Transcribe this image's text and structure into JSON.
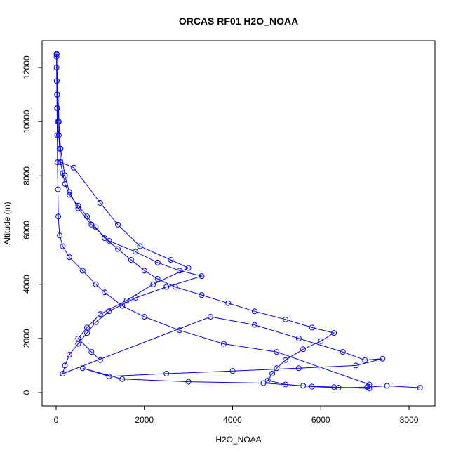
{
  "chart_data": {
    "type": "line",
    "markers": "circle",
    "title": "ORCAS RF01 H2O_NOAA",
    "x_label": "H2O_NOAA",
    "y_label": "Altitude (m)",
    "xlim": [
      -318,
      8588
    ],
    "ylim": [
      -492,
      12986
    ],
    "xticks": [
      0,
      2000,
      4000,
      6000,
      8000
    ],
    "yticks": [
      0,
      2000,
      4000,
      6000,
      8000,
      10000,
      12000
    ],
    "x": [
      8250,
      7500,
      7050,
      6400,
      5800,
      5200,
      4800,
      4900,
      5000,
      5200,
      5600,
      6000,
      6300,
      5800,
      5200,
      4500,
      3900,
      3300,
      2700,
      2300,
      2000,
      1700,
      1400,
      1100,
      900,
      700,
      500,
      300,
      200,
      150,
      100,
      80,
      60,
      40,
      30,
      20,
      15,
      10,
      10,
      12,
      15,
      30,
      60,
      100,
      200,
      300,
      500,
      800,
      1200,
      1800,
      2300,
      2800,
      3300,
      2500,
      1800,
      1200,
      900,
      700,
      500,
      300,
      200,
      150,
      3500,
      4500,
      5500,
      6500,
      7000,
      7400,
      6800,
      5500,
      4000,
      2500,
      1200,
      600,
      1500,
      3000,
      4700,
      5600,
      6300,
      7100,
      7100,
      5000,
      3800,
      2800,
      2000,
      1500,
      1100,
      900,
      600,
      300,
      150,
      80,
      50,
      40,
      30,
      25,
      20,
      15,
      10,
      100,
      400,
      1000,
      1400,
      1900,
      2600,
      3000,
      2200,
      1600,
      1000,
      700,
      500,
      800,
      1000
    ],
    "series": [
      {
        "name": "H2O_NOAA",
        "color": "#0000ff",
        "values": [
          180,
          250,
          200,
          180,
          220,
          300,
          450,
          700,
          900,
          1200,
          1600,
          1900,
          2200,
          2400,
          2700,
          3000,
          3300,
          3600,
          3900,
          4200,
          4500,
          4900,
          5300,
          5700,
          6100,
          6500,
          6900,
          7300,
          7700,
          8100,
          8500,
          9000,
          9500,
          10000,
          10500,
          11000,
          11500,
          12000,
          12500,
          12480,
          12500,
          11000,
          10000,
          9000,
          8000,
          7400,
          6800,
          6200,
          5600,
          5200,
          4800,
          4500,
          4300,
          3900,
          3500,
          3000,
          2600,
          2200,
          1800,
          1400,
          1000,
          700,
          2800,
          2500,
          2000,
          1500,
          1200,
          1250,
          1000,
          900,
          800,
          700,
          600,
          900,
          500,
          400,
          350,
          250,
          200,
          150,
          300,
          1500,
          1800,
          2300,
          2800,
          3200,
          3700,
          4000,
          4500,
          5000,
          5400,
          5800,
          6500,
          7500,
          8500,
          9500,
          10500,
          11500,
          12400,
          8500,
          8300,
          7000,
          6200,
          5400,
          4900,
          4600,
          4000,
          3400,
          2900,
          2400,
          2000,
          1500,
          1200
        ]
      }
    ]
  }
}
